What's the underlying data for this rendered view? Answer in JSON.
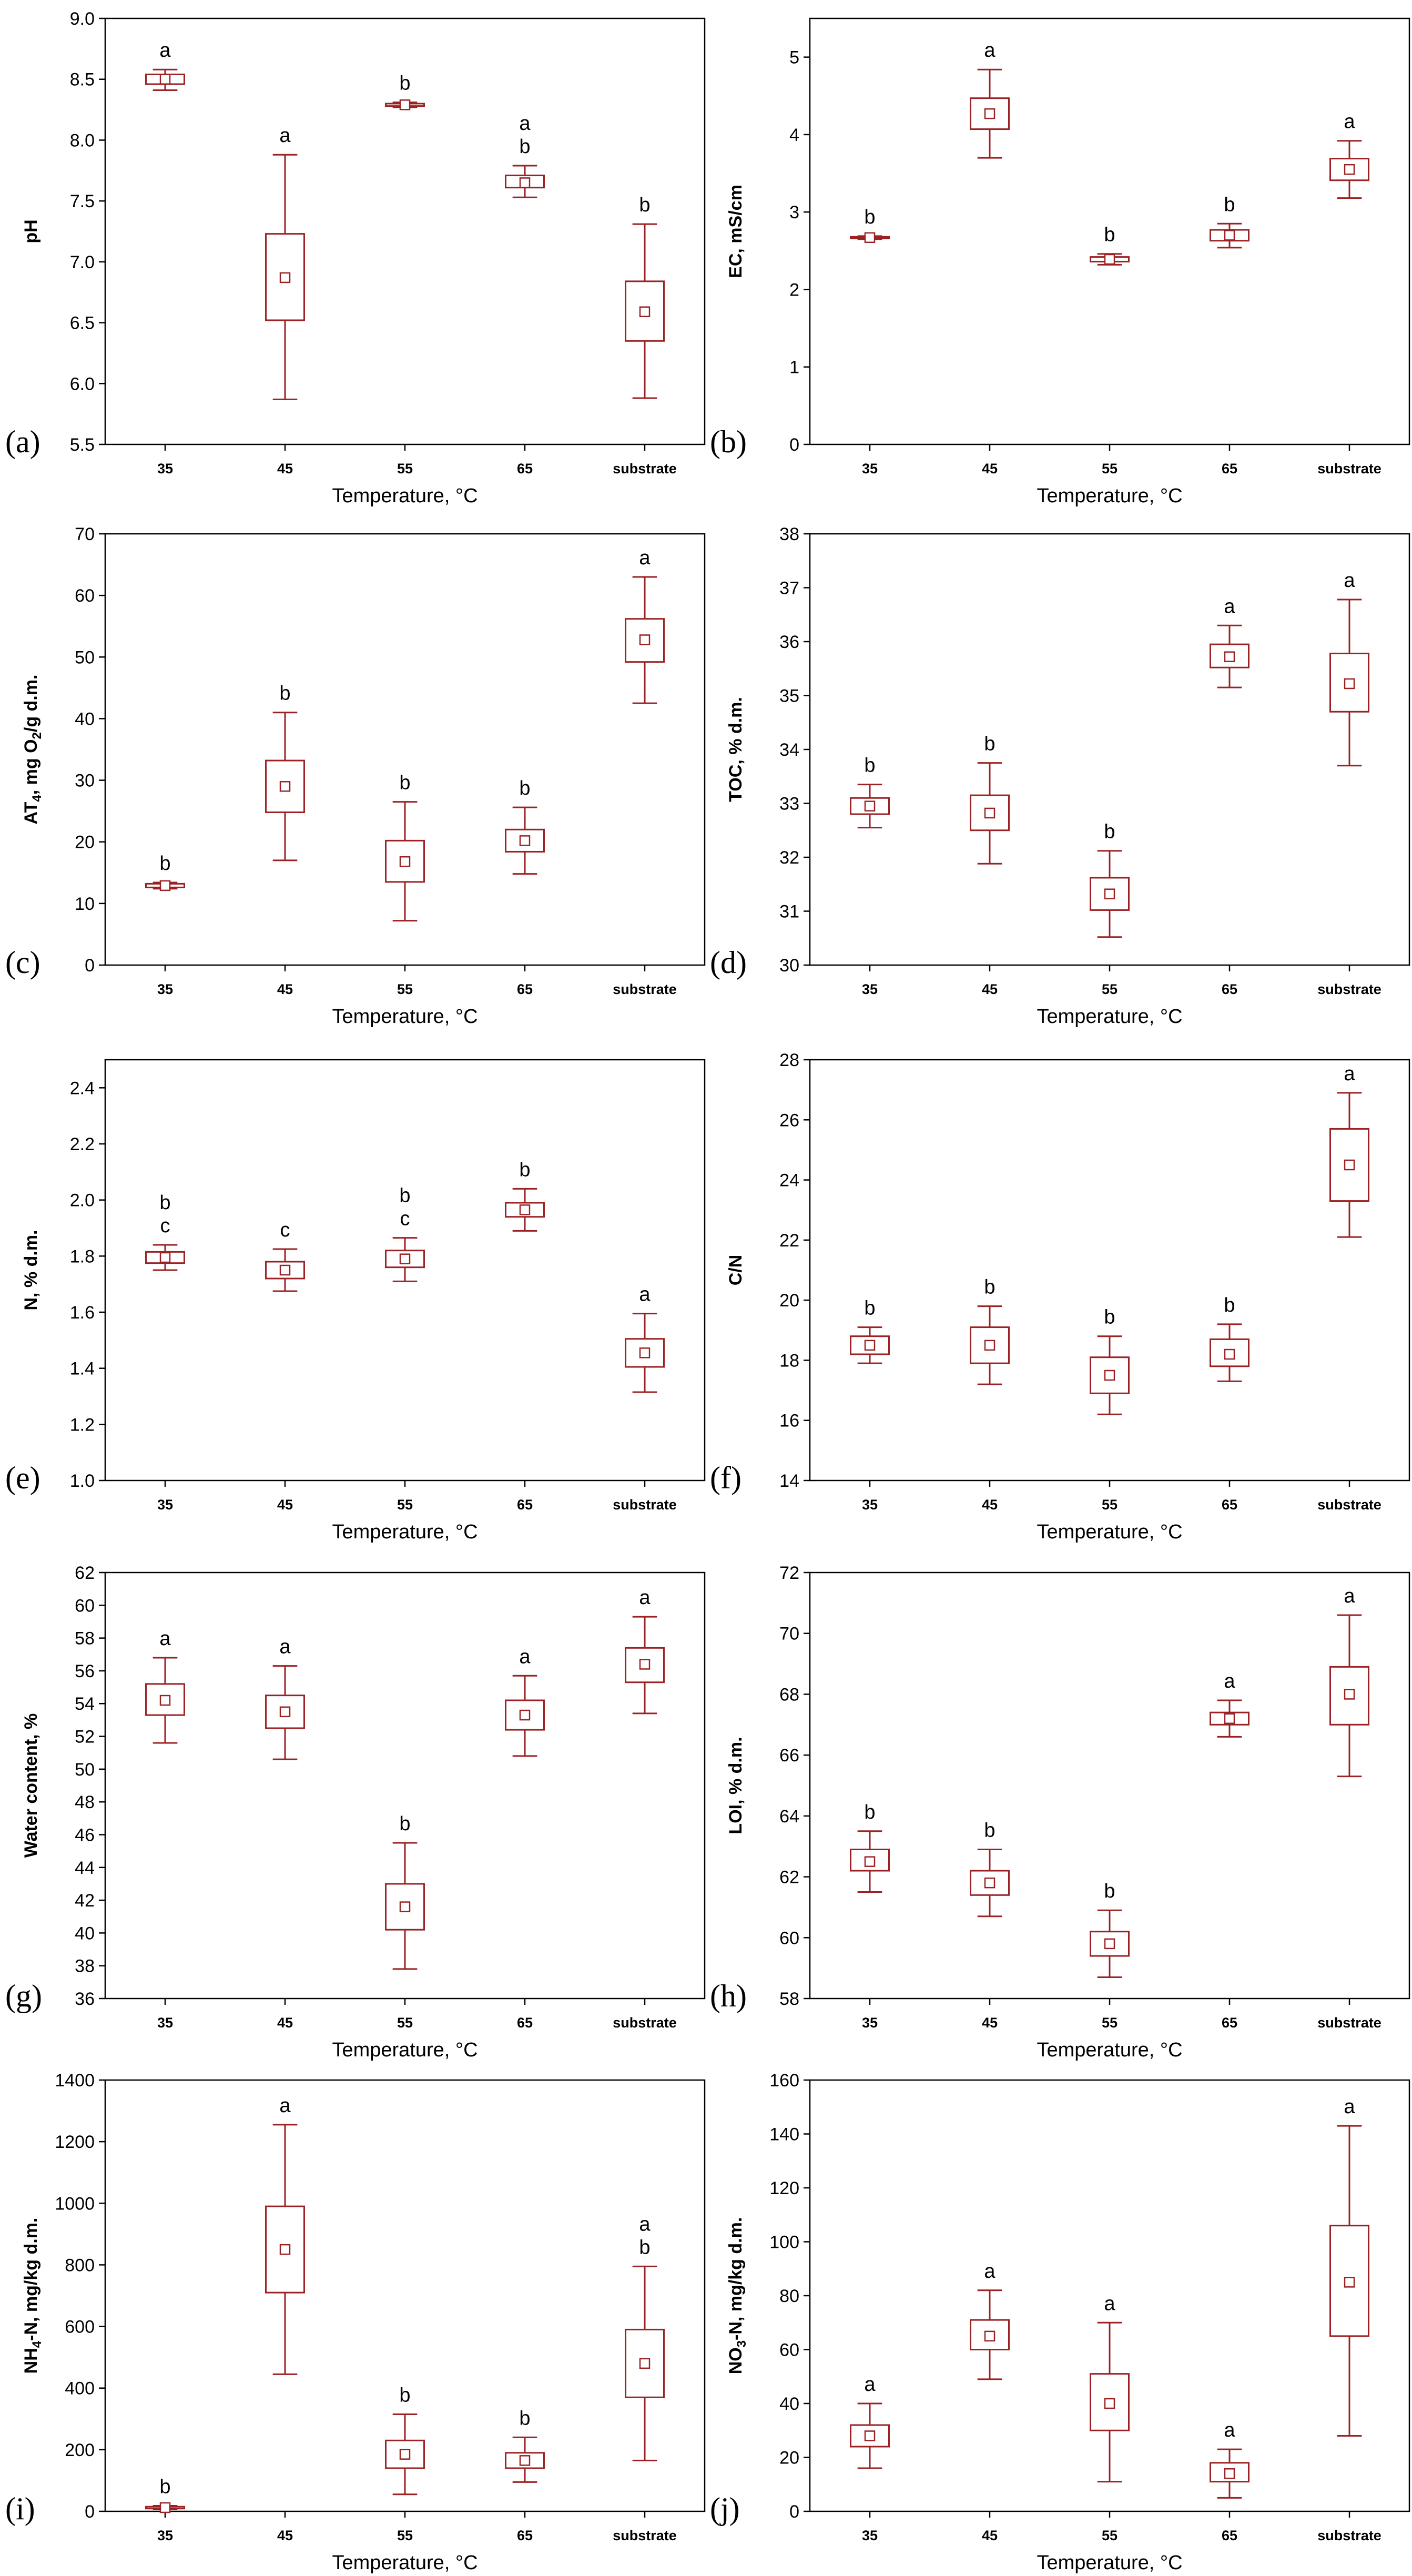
{
  "chart_data": [
    {
      "type": "box",
      "panel_label": "(a)",
      "xlabel": "Temperature, °C",
      "ylabel": "pH",
      "ylim": [
        5.5,
        9.0
      ],
      "yticks": [
        "5.5",
        "6.0",
        "6.5",
        "7.0",
        "7.5",
        "8.0",
        "8.5",
        "9.0"
      ],
      "categories": [
        "35",
        "45",
        "55",
        "65",
        "substrate"
      ],
      "boxes": [
        {
          "mean": 8.5,
          "q1": 8.46,
          "q3": 8.54,
          "min": 8.41,
          "max": 8.58,
          "groups": [
            "a"
          ]
        },
        {
          "mean": 6.87,
          "q1": 6.52,
          "q3": 7.23,
          "min": 5.87,
          "max": 7.88,
          "groups": [
            "a"
          ]
        },
        {
          "mean": 8.29,
          "q1": 8.28,
          "q3": 8.3,
          "min": 8.27,
          "max": 8.31,
          "groups": [
            "b"
          ]
        },
        {
          "mean": 7.65,
          "q1": 7.61,
          "q3": 7.71,
          "min": 7.53,
          "max": 7.79,
          "groups": [
            "a",
            "b"
          ]
        },
        {
          "mean": 6.59,
          "q1": 6.35,
          "q3": 6.84,
          "min": 5.88,
          "max": 7.31,
          "groups": [
            "b"
          ]
        }
      ]
    },
    {
      "type": "box",
      "panel_label": "(b)",
      "xlabel": "Temperature, °C",
      "ylabel": "EC, mS/cm",
      "ylim": [
        0,
        5.5
      ],
      "yticks": [
        "0",
        "1",
        "2",
        "3",
        "4",
        "5"
      ],
      "categories": [
        "35",
        "45",
        "55",
        "65",
        "substrate"
      ],
      "boxes": [
        {
          "mean": 2.67,
          "q1": 2.66,
          "q3": 2.68,
          "min": 2.65,
          "max": 2.69,
          "groups": [
            "b"
          ]
        },
        {
          "mean": 4.27,
          "q1": 4.07,
          "q3": 4.47,
          "min": 3.7,
          "max": 4.84,
          "groups": [
            "a"
          ]
        },
        {
          "mean": 2.39,
          "q1": 2.36,
          "q3": 2.42,
          "min": 2.32,
          "max": 2.46,
          "groups": [
            "b"
          ]
        },
        {
          "mean": 2.7,
          "q1": 2.63,
          "q3": 2.77,
          "min": 2.54,
          "max": 2.85,
          "groups": [
            "b"
          ]
        },
        {
          "mean": 3.55,
          "q1": 3.41,
          "q3": 3.69,
          "min": 3.18,
          "max": 3.92,
          "groups": [
            "a"
          ]
        }
      ]
    },
    {
      "type": "box",
      "panel_label": "(c)",
      "xlabel": "Temperature, °C",
      "ylabel": "AT4, mg O2/g d.m.",
      "ylim": [
        0,
        70
      ],
      "yticks": [
        "0",
        "10",
        "20",
        "30",
        "40",
        "50",
        "60",
        "70"
      ],
      "categories": [
        "35",
        "45",
        "55",
        "65",
        "substrate"
      ],
      "boxes": [
        {
          "mean": 12.9,
          "q1": 12.6,
          "q3": 13.2,
          "min": 12.4,
          "max": 13.4,
          "groups": [
            "b"
          ]
        },
        {
          "mean": 29.0,
          "q1": 24.8,
          "q3": 33.2,
          "min": 17.0,
          "max": 41.0,
          "groups": [
            "b"
          ]
        },
        {
          "mean": 16.8,
          "q1": 13.5,
          "q3": 20.2,
          "min": 7.2,
          "max": 26.5,
          "groups": [
            "b"
          ]
        },
        {
          "mean": 20.2,
          "q1": 18.4,
          "q3": 22.0,
          "min": 14.8,
          "max": 25.6,
          "groups": [
            "b"
          ]
        },
        {
          "mean": 52.8,
          "q1": 49.2,
          "q3": 56.2,
          "min": 42.5,
          "max": 63.0,
          "groups": [
            "a"
          ]
        }
      ]
    },
    {
      "type": "box",
      "panel_label": "(d)",
      "xlabel": "Temperature, °C",
      "ylabel": "TOC, % d.m.",
      "ylim": [
        30,
        38
      ],
      "yticks": [
        "30",
        "31",
        "32",
        "33",
        "34",
        "35",
        "36",
        "37",
        "38"
      ],
      "categories": [
        "35",
        "45",
        "55",
        "65",
        "substrate"
      ],
      "boxes": [
        {
          "mean": 32.95,
          "q1": 32.8,
          "q3": 33.1,
          "min": 32.55,
          "max": 33.35,
          "groups": [
            "b"
          ]
        },
        {
          "mean": 32.82,
          "q1": 32.5,
          "q3": 33.15,
          "min": 31.88,
          "max": 33.75,
          "groups": [
            "b"
          ]
        },
        {
          "mean": 31.32,
          "q1": 31.02,
          "q3": 31.62,
          "min": 30.52,
          "max": 32.12,
          "groups": [
            "b"
          ]
        },
        {
          "mean": 35.72,
          "q1": 35.52,
          "q3": 35.95,
          "min": 35.15,
          "max": 36.3,
          "groups": [
            "a"
          ]
        },
        {
          "mean": 35.22,
          "q1": 34.7,
          "q3": 35.78,
          "min": 33.7,
          "max": 36.78,
          "groups": [
            "a"
          ]
        }
      ]
    },
    {
      "type": "box",
      "panel_label": "(e)",
      "xlabel": "Temperature, °C",
      "ylabel": "N, % d.m.",
      "ylim": [
        1.0,
        2.5
      ],
      "yticks": [
        "1.0",
        "1.2",
        "1.4",
        "1.6",
        "1.8",
        "2.0",
        "2.2",
        "2.4"
      ],
      "categories": [
        "35",
        "45",
        "55",
        "65",
        "substrate"
      ],
      "boxes": [
        {
          "mean": 1.795,
          "q1": 1.775,
          "q3": 1.815,
          "min": 1.75,
          "max": 1.84,
          "groups": [
            "b",
            "c"
          ]
        },
        {
          "mean": 1.75,
          "q1": 1.72,
          "q3": 1.78,
          "min": 1.675,
          "max": 1.825,
          "groups": [
            "c"
          ]
        },
        {
          "mean": 1.79,
          "q1": 1.76,
          "q3": 1.82,
          "min": 1.71,
          "max": 1.865,
          "groups": [
            "b",
            "c"
          ]
        },
        {
          "mean": 1.965,
          "q1": 1.94,
          "q3": 1.99,
          "min": 1.89,
          "max": 2.04,
          "groups": [
            "b"
          ]
        },
        {
          "mean": 1.455,
          "q1": 1.405,
          "q3": 1.505,
          "min": 1.315,
          "max": 1.595,
          "groups": [
            "a"
          ]
        }
      ]
    },
    {
      "type": "box",
      "panel_label": "(f)",
      "xlabel": "Temperature, °C",
      "ylabel": "C/N",
      "ylim": [
        14,
        28
      ],
      "yticks": [
        "14",
        "16",
        "18",
        "20",
        "22",
        "24",
        "26",
        "28"
      ],
      "categories": [
        "35",
        "45",
        "55",
        "65",
        "substrate"
      ],
      "boxes": [
        {
          "mean": 18.5,
          "q1": 18.2,
          "q3": 18.8,
          "min": 17.9,
          "max": 19.1,
          "groups": [
            "b"
          ]
        },
        {
          "mean": 18.5,
          "q1": 17.9,
          "q3": 19.1,
          "min": 17.2,
          "max": 19.8,
          "groups": [
            "b"
          ]
        },
        {
          "mean": 17.5,
          "q1": 16.9,
          "q3": 18.1,
          "min": 16.2,
          "max": 18.8,
          "groups": [
            "b"
          ]
        },
        {
          "mean": 18.2,
          "q1": 17.8,
          "q3": 18.7,
          "min": 17.3,
          "max": 19.2,
          "groups": [
            "b"
          ]
        },
        {
          "mean": 24.5,
          "q1": 23.3,
          "q3": 25.7,
          "min": 22.1,
          "max": 26.9,
          "groups": [
            "a"
          ]
        }
      ]
    },
    {
      "type": "box",
      "panel_label": "(g)",
      "xlabel": "Temperature, °C",
      "ylabel": "Water content, %",
      "ylim": [
        36,
        62
      ],
      "yticks": [
        "36",
        "38",
        "40",
        "42",
        "44",
        "46",
        "48",
        "50",
        "52",
        "54",
        "56",
        "58",
        "60",
        "62"
      ],
      "categories": [
        "35",
        "45",
        "55",
        "65",
        "substrate"
      ],
      "boxes": [
        {
          "mean": 54.2,
          "q1": 53.3,
          "q3": 55.2,
          "min": 51.6,
          "max": 56.8,
          "groups": [
            "a"
          ]
        },
        {
          "mean": 53.5,
          "q1": 52.5,
          "q3": 54.5,
          "min": 50.6,
          "max": 56.3,
          "groups": [
            "a"
          ]
        },
        {
          "mean": 41.6,
          "q1": 40.2,
          "q3": 43.0,
          "min": 37.8,
          "max": 45.5,
          "groups": [
            "b"
          ]
        },
        {
          "mean": 53.3,
          "q1": 52.4,
          "q3": 54.2,
          "min": 50.8,
          "max": 55.7,
          "groups": [
            "a"
          ]
        },
        {
          "mean": 56.4,
          "q1": 55.3,
          "q3": 57.4,
          "min": 53.4,
          "max": 59.3,
          "groups": [
            "a"
          ]
        }
      ]
    },
    {
      "type": "box",
      "panel_label": "(h)",
      "xlabel": "Temperature, °C",
      "ylabel": "LOI, % d.m.",
      "ylim": [
        58,
        72
      ],
      "yticks": [
        "58",
        "60",
        "62",
        "64",
        "66",
        "68",
        "70",
        "72"
      ],
      "categories": [
        "35",
        "45",
        "55",
        "65",
        "substrate"
      ],
      "boxes": [
        {
          "mean": 62.5,
          "q1": 62.2,
          "q3": 62.9,
          "min": 61.5,
          "max": 63.5,
          "groups": [
            "b"
          ]
        },
        {
          "mean": 61.8,
          "q1": 61.4,
          "q3": 62.2,
          "min": 60.7,
          "max": 62.9,
          "groups": [
            "b"
          ]
        },
        {
          "mean": 59.8,
          "q1": 59.4,
          "q3": 60.2,
          "min": 58.7,
          "max": 60.9,
          "groups": [
            "b"
          ]
        },
        {
          "mean": 67.2,
          "q1": 67.0,
          "q3": 67.4,
          "min": 66.6,
          "max": 67.8,
          "groups": [
            "a"
          ]
        },
        {
          "mean": 68.0,
          "q1": 67.0,
          "q3": 68.9,
          "min": 65.3,
          "max": 70.6,
          "groups": [
            "a"
          ]
        }
      ]
    },
    {
      "type": "box",
      "panel_label": "(i)",
      "xlabel": "Temperature, °C",
      "ylabel": "NH4-N, mg/kg d.m.",
      "ylim": [
        0,
        1400
      ],
      "yticks": [
        "0",
        "200",
        "400",
        "600",
        "800",
        "1000",
        "1200",
        "1400"
      ],
      "categories": [
        "35",
        "45",
        "55",
        "65",
        "substrate"
      ],
      "boxes": [
        {
          "mean": 12,
          "q1": 9,
          "q3": 15,
          "min": 6,
          "max": 18,
          "groups": [
            "b"
          ]
        },
        {
          "mean": 850,
          "q1": 710,
          "q3": 990,
          "min": 445,
          "max": 1255,
          "groups": [
            "a"
          ]
        },
        {
          "mean": 185,
          "q1": 140,
          "q3": 230,
          "min": 55,
          "max": 315,
          "groups": [
            "b"
          ]
        },
        {
          "mean": 165,
          "q1": 140,
          "q3": 190,
          "min": 95,
          "max": 240,
          "groups": [
            "b"
          ]
        },
        {
          "mean": 480,
          "q1": 370,
          "q3": 590,
          "min": 165,
          "max": 795,
          "groups": [
            "a",
            "b"
          ]
        }
      ]
    },
    {
      "type": "box",
      "panel_label": "(j)",
      "xlabel": "Temperature, °C",
      "ylabel": "NO3-N, mg/kg d.m.",
      "ylim": [
        0,
        160
      ],
      "yticks": [
        "0",
        "20",
        "40",
        "60",
        "80",
        "100",
        "120",
        "140",
        "160"
      ],
      "categories": [
        "35",
        "45",
        "55",
        "65",
        "substrate"
      ],
      "boxes": [
        {
          "mean": 28,
          "q1": 24,
          "q3": 32,
          "min": 16,
          "max": 40,
          "groups": [
            "a"
          ]
        },
        {
          "mean": 65,
          "q1": 60,
          "q3": 71,
          "min": 49,
          "max": 82,
          "groups": [
            "a"
          ]
        },
        {
          "mean": 40,
          "q1": 30,
          "q3": 51,
          "min": 11,
          "max": 70,
          "groups": [
            "a"
          ]
        },
        {
          "mean": 14,
          "q1": 11,
          "q3": 18,
          "min": 5,
          "max": 23,
          "groups": [
            "a"
          ]
        },
        {
          "mean": 85,
          "q1": 65,
          "q3": 106,
          "min": 28,
          "max": 143,
          "groups": [
            "a"
          ]
        }
      ]
    }
  ],
  "colors": {
    "box": "#9b2224",
    "axis": "#000000"
  }
}
